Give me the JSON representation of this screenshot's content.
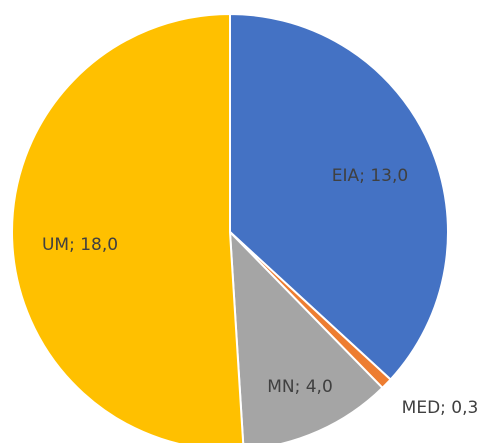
{
  "chart_data": {
    "type": "pie",
    "categories": [
      "EIA",
      "MED",
      "MN",
      "UM"
    ],
    "values": [
      13.0,
      0.3,
      4.0,
      18.0
    ],
    "value_labels": [
      "13,0",
      "0,3",
      "4,0",
      "18,0"
    ],
    "label_separator": "; ",
    "colors": [
      "#4472c4",
      "#ed7d31",
      "#a5a5a5",
      "#ffc000"
    ]
  }
}
